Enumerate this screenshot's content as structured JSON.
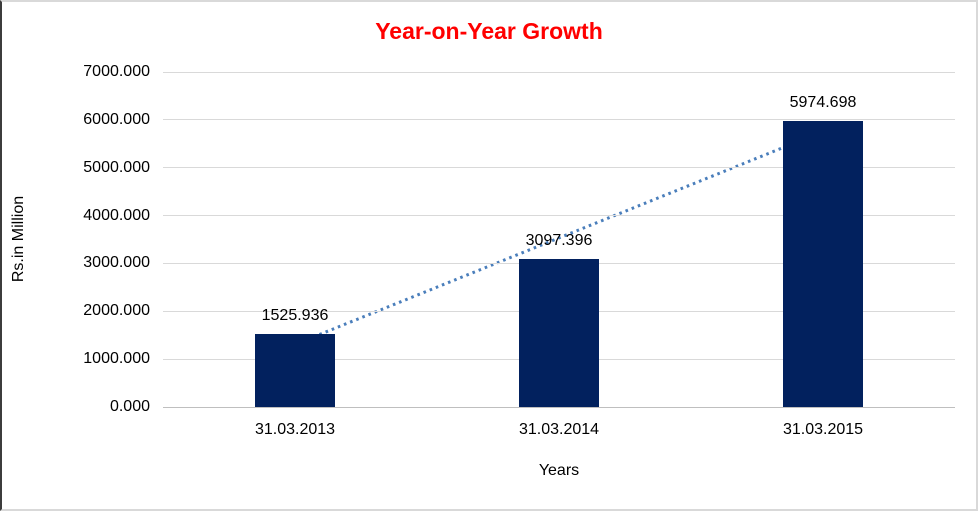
{
  "window": {
    "kind": "excel-style-chart"
  },
  "colors": {
    "title": "#ff0000",
    "bar": "#02215e",
    "trendline": "#4a7ebb",
    "gridline": "#d9d9d9",
    "axis_line": "#bfbfbf",
    "text": "#000000",
    "background": "#ffffff"
  },
  "chart_data": {
    "type": "bar",
    "title": "Year-on-Year Growth",
    "xlabel": "Years",
    "ylabel": "Rs.in Million",
    "categories": [
      "31.03.2013",
      "31.03.2014",
      "31.03.2015"
    ],
    "values": [
      1525.936,
      3097.396,
      5974.698
    ],
    "data_labels": [
      "1525.936",
      "3097.396",
      "5974.698"
    ],
    "ylim": [
      0,
      7000
    ],
    "ytick_step": 1000,
    "ytick_labels": [
      "0.000",
      "1000.000",
      "2000.000",
      "3000.000",
      "4000.000",
      "5000.000",
      "6000.000",
      "7000.000"
    ],
    "grid": true,
    "legend": "none",
    "trendline": {
      "style": "dotted",
      "color": "#4a7ebb",
      "start_value": 1308.3,
      "end_value": 5757.1
    }
  }
}
